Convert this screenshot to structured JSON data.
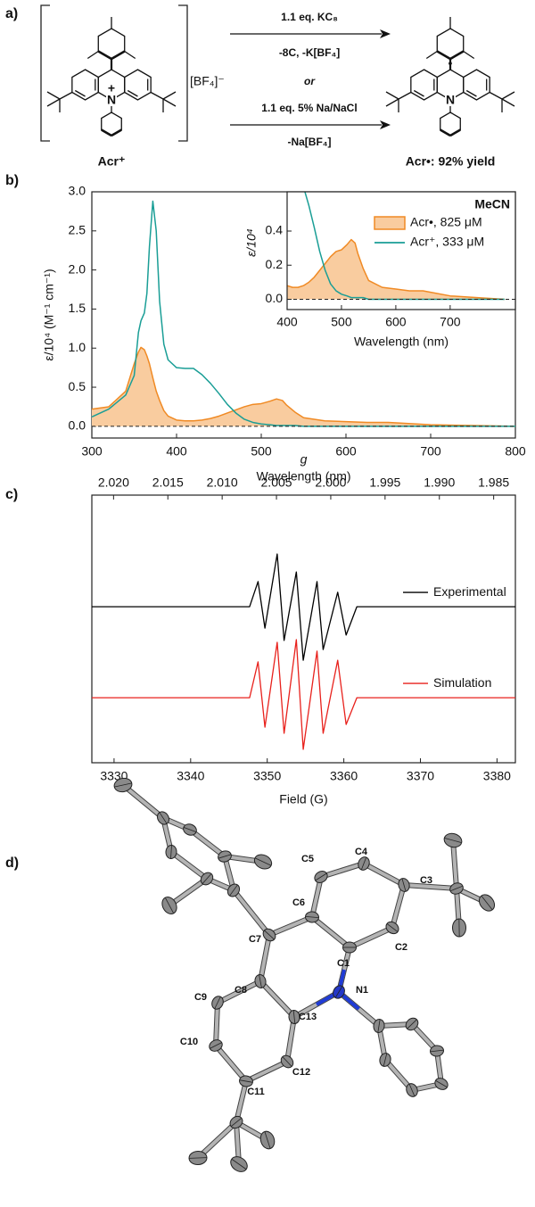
{
  "scheme": {
    "label": "a)",
    "reactant": {
      "name": "Acr⁺",
      "atom": "N",
      "charge": "+"
    },
    "counterion": "[BF₄]⁻",
    "conditions": [
      "1.1 eq. KC₈",
      "-8C, -K[BF₄]",
      "or",
      "1.1 eq. 5% Na/NaCl",
      "-Na[BF₄]"
    ],
    "product": {
      "name": "Acr•: 92% yield",
      "atom": "N",
      "radical": "•"
    }
  },
  "chart_data": [
    {
      "type": "line",
      "panel_label": "b)",
      "xlabel": "Wavelength (nm)",
      "ylabel": "ε/10⁴ (M⁻¹ cm⁻¹)",
      "xlim": [
        300,
        800
      ],
      "ylim": [
        -0.15,
        3.0
      ],
      "xticks": [
        300,
        400,
        500,
        600,
        700,
        800
      ],
      "yticks": [
        {
          "value": 0,
          "label": "0.0"
        },
        0.5,
        {
          "value": 1,
          "label": "1.0"
        },
        1.5,
        {
          "value": 2,
          "label": "2.0"
        },
        2.5,
        {
          "value": 3,
          "label": "3.0"
        }
      ],
      "hline": 0,
      "x": [
        300,
        320,
        340,
        350,
        355,
        358,
        362,
        365,
        368,
        372,
        376,
        380,
        385,
        390,
        400,
        410,
        420,
        430,
        440,
        450,
        460,
        470,
        480,
        490,
        500,
        510,
        518,
        525,
        530,
        540,
        550,
        575,
        600,
        625,
        650,
        700,
        750,
        800
      ],
      "series": [
        {
          "name": "Acr•, 825 μM",
          "color": "#f08a24",
          "fill": "#f9cc9f",
          "values": [
            0.22,
            0.25,
            0.45,
            0.8,
            0.95,
            1.01,
            0.98,
            0.9,
            0.8,
            0.62,
            0.45,
            0.33,
            0.2,
            0.13,
            0.08,
            0.07,
            0.07,
            0.08,
            0.1,
            0.13,
            0.17,
            0.21,
            0.25,
            0.28,
            0.29,
            0.32,
            0.35,
            0.33,
            0.27,
            0.18,
            0.11,
            0.07,
            0.06,
            0.05,
            0.05,
            0.02,
            0.01,
            0
          ]
        },
        {
          "name": "Acr⁺, 333 μM",
          "color": "#1a9e96",
          "values": [
            0.12,
            0.22,
            0.4,
            0.65,
            1.2,
            1.35,
            1.45,
            1.7,
            2.3,
            2.88,
            2.5,
            1.6,
            1.05,
            0.85,
            0.75,
            0.74,
            0.74,
            0.66,
            0.55,
            0.42,
            0.28,
            0.17,
            0.09,
            0.05,
            0.03,
            0.02,
            0.01,
            0.01,
            0.01,
            0.01,
            0,
            0,
            0,
            0,
            0,
            0,
            0,
            0
          ]
        }
      ],
      "legend": {
        "title": "MeCN"
      },
      "inset": {
        "xlabel": "Wavelength (nm)",
        "ylabel": "ε/10⁴",
        "xlim": [
          400,
          820
        ],
        "ylim": [
          -0.06,
          0.63
        ],
        "xticks": [
          400,
          500,
          600,
          700
        ],
        "yticks": [
          {
            "value": 0,
            "label": "0.0"
          },
          0.2,
          0.4
        ]
      }
    },
    {
      "type": "line",
      "panel_label": "c)",
      "xlabel": "Field (G)",
      "x2label": "g",
      "xlim": [
        3327.1,
        3382.4
      ],
      "ylim": [
        0,
        10
      ],
      "xticks": [
        3330,
        3340,
        3350,
        3360,
        3370,
        3380
      ],
      "x2lim": [
        2.022,
        1.983
      ],
      "x2ticks": [
        {
          "value": 2.02,
          "label": "2.020"
        },
        2.015,
        {
          "value": 2.01,
          "label": "2.010"
        },
        2.005,
        {
          "value": 2,
          "label": "2.000"
        },
        1.995,
        {
          "value": 1.99,
          "label": "1.990"
        },
        1.985
      ],
      "x": [
        3327.1,
        3347.7,
        3348.8,
        3349.7,
        3351.3,
        3352.2,
        3353.8,
        3354.7,
        3356.5,
        3357.3,
        3359.2,
        3360.3,
        3361.7,
        3382.4
      ],
      "series": [
        {
          "name": "Experimental",
          "color": "#000000",
          "values": [
            5.83,
            5.83,
            6.77,
            5.03,
            7.8,
            4.57,
            7.13,
            3.83,
            6.77,
            4.23,
            6.37,
            4.77,
            5.83,
            5.83
          ]
        },
        {
          "name": "Simulation",
          "color": "#e8211c",
          "values": [
            2.43,
            2.43,
            3.77,
            1.33,
            4.5,
            1.1,
            4.6,
            0.5,
            4.17,
            1.1,
            3.83,
            1.43,
            2.43,
            2.43
          ]
        }
      ]
    }
  ],
  "structure": {
    "label": "d)",
    "atom_labels": [
      "C5",
      "C4",
      "C3",
      "C6",
      "C2",
      "C7",
      "C1",
      "C8",
      "C9",
      "N1",
      "C13",
      "C10",
      "C12",
      "C11"
    ]
  }
}
